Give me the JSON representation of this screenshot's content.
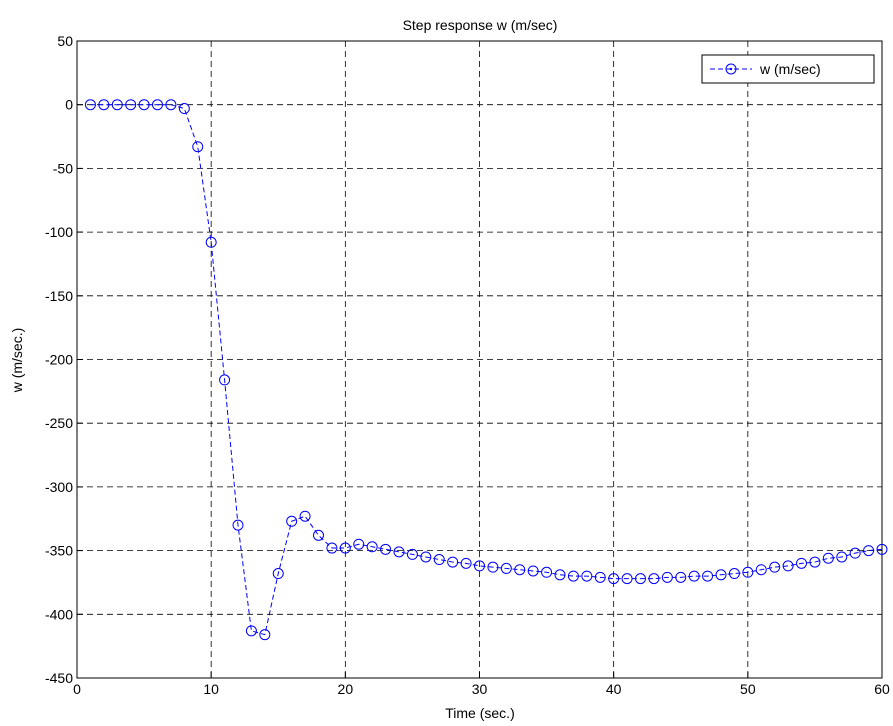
{
  "chart_data": {
    "type": "line",
    "title": "Step response w (m/sec)",
    "x_label": "Time (sec.)",
    "y_label": "w (m/sec.)",
    "x": [
      1,
      2,
      3,
      4,
      5,
      6,
      7,
      8,
      9,
      10,
      11,
      12,
      13,
      14,
      15,
      16,
      17,
      18,
      19,
      20,
      21,
      22,
      23,
      24,
      25,
      26,
      27,
      28,
      29,
      30,
      31,
      32,
      33,
      34,
      35,
      36,
      37,
      38,
      39,
      40,
      41,
      42,
      43,
      44,
      45,
      46,
      47,
      48,
      49,
      50,
      51,
      52,
      53,
      54,
      55,
      56,
      57,
      58,
      59,
      60
    ],
    "series": [
      {
        "name": "w (m/sec)",
        "color": "#0000ff",
        "marker": "circle",
        "line_style": "dashed",
        "values": [
          0,
          0,
          0,
          0,
          0,
          0,
          0,
          -3,
          -33,
          -108,
          -216,
          -330,
          -413,
          -416,
          -368,
          -327,
          -323,
          -338,
          -348,
          -348,
          -345,
          -347,
          -349,
          -351,
          -353,
          -355,
          -357,
          -359,
          -360,
          -362,
          -363,
          -364,
          -365,
          -366,
          -367,
          -369,
          -370,
          -370,
          -371,
          -372,
          -372,
          -372,
          -372,
          -371,
          -371,
          -370,
          -370,
          -369,
          -368,
          -367,
          -365,
          -363,
          -362,
          -360,
          -359,
          -356,
          -355,
          -352,
          -350,
          -349
        ]
      }
    ],
    "xlim": [
      0,
      60
    ],
    "xticks": [
      0,
      10,
      20,
      30,
      40,
      50,
      60
    ],
    "ylim": [
      -450,
      50
    ],
    "yticks": [
      -450,
      -400,
      -350,
      -300,
      -250,
      -200,
      -150,
      -100,
      -50,
      0,
      50
    ],
    "grid": true,
    "legend": "upper-right"
  }
}
